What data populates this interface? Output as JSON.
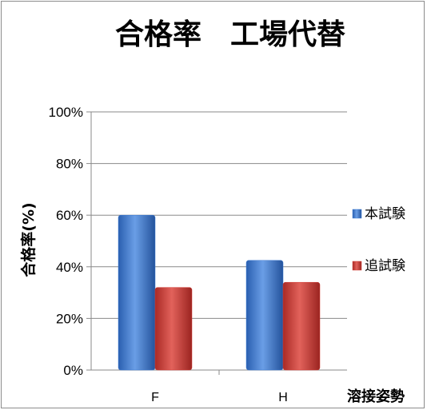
{
  "chart_data": {
    "type": "bar",
    "title": "合格率　工場代替",
    "xlabel": "溶接姿勢",
    "ylabel": "合格率(%)",
    "categories": [
      "F",
      "H"
    ],
    "series": [
      {
        "name": "本試験",
        "values": [
          60,
          42.5
        ],
        "color": "#3d7ad2"
      },
      {
        "name": "追試験",
        "values": [
          32,
          34
        ],
        "color": "#d23c36"
      }
    ],
    "ylim": [
      0,
      100
    ],
    "yticks": [
      "0%",
      "20%",
      "40%",
      "60%",
      "80%",
      "100%"
    ],
    "grid": true,
    "legend": "right"
  }
}
